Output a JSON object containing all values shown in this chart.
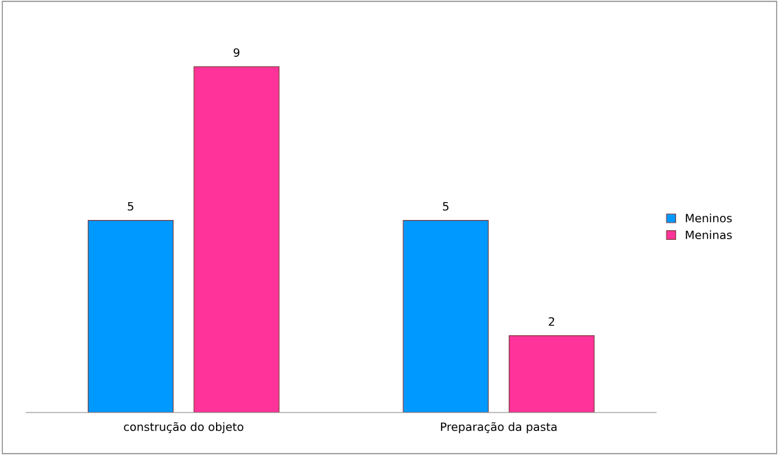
{
  "chart_data": {
    "type": "bar",
    "categories": [
      "construção do objeto",
      "Preparação da pasta"
    ],
    "series": [
      {
        "name": "Meninos",
        "color": "#0099ff",
        "values": [
          5,
          5
        ]
      },
      {
        "name": "Meninas",
        "color": "#ff3399",
        "values": [
          9,
          2
        ]
      }
    ],
    "data_labels": true,
    "legend": "right",
    "grid": false
  }
}
